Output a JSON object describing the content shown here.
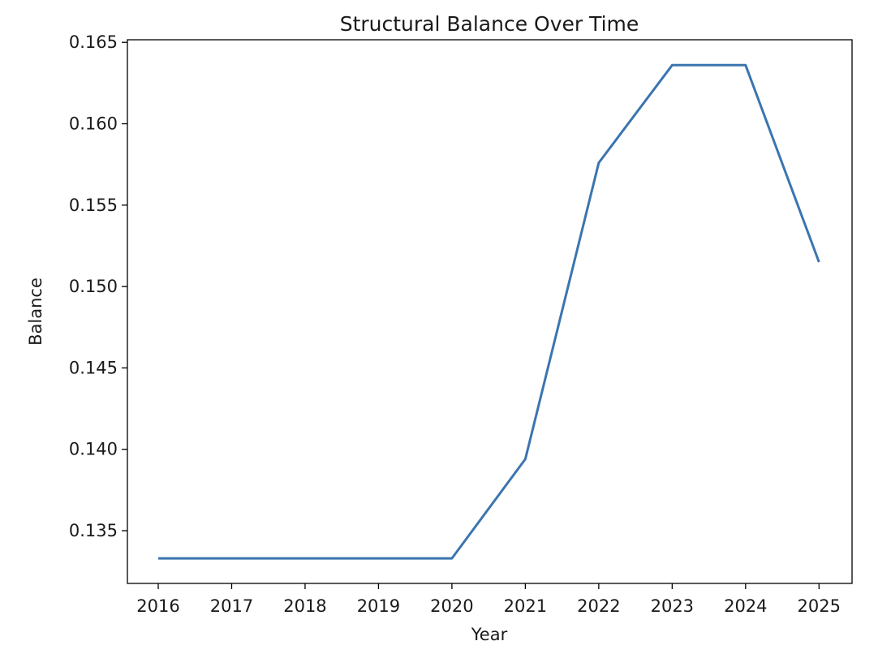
{
  "chart_data": {
    "type": "line",
    "title": "Structural Balance Over Time",
    "xlabel": "Year",
    "ylabel": "Balance",
    "x": [
      2016,
      2017,
      2018,
      2019,
      2020,
      2021,
      2022,
      2023,
      2024,
      2025
    ],
    "series": [
      {
        "values": [
          0.1333,
          0.1333,
          0.1333,
          0.1333,
          0.1333,
          0.1394,
          0.1576,
          0.1636,
          0.1636,
          0.1515
        ],
        "color": "#3b75af"
      }
    ],
    "xticks": [
      "2016",
      "2017",
      "2018",
      "2019",
      "2020",
      "2021",
      "2022",
      "2023",
      "2024",
      "2025"
    ],
    "yticks": [
      "0.135",
      "0.140",
      "0.145",
      "0.150",
      "0.155",
      "0.160",
      "0.165"
    ],
    "xlim": [
      2015.58,
      2025.45
    ],
    "ylim": [
      0.13176,
      0.16516
    ],
    "grid": false
  }
}
